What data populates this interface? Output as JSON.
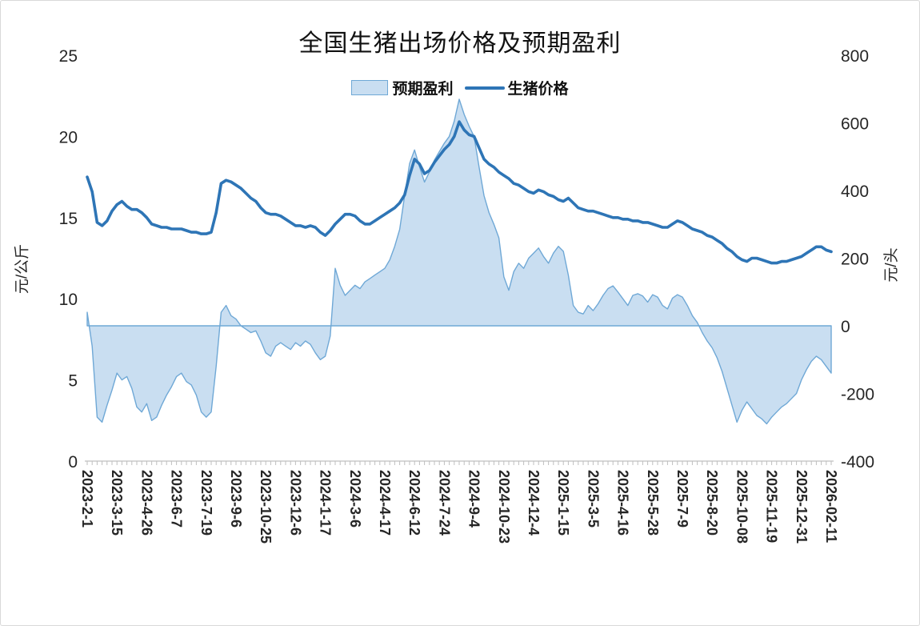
{
  "title": "全国生猪出场价格及预期盈利",
  "legend": {
    "area_label": "预期盈利",
    "line_label": "生猪价格"
  },
  "axes": {
    "left_title": "元/公斤",
    "right_title": "元/头"
  },
  "chart_data": {
    "type": "combo",
    "title": "全国生猪出场价格及预期盈利",
    "legend_position": "top-center",
    "grid": false,
    "x_tick_every": 6,
    "x_tick_labels": [
      "2023-2-1",
      "2023-3-15",
      "2023-4-26",
      "2023-6-7",
      "2023-7-19",
      "2023-9-6",
      "2023-10-25",
      "2023-12-6",
      "2024-1-17",
      "2024-3-6",
      "2024-4-17",
      "2024-6-12",
      "2024-7-24",
      "2024-9-4",
      "2024-10-23",
      "2024-12-4",
      "2025-1-15",
      "2025-3-5",
      "2025-4-16",
      "2025-5-28",
      "2025-7-9",
      "2025-8-20",
      "2025-10-08",
      "2025-11-19",
      "2025-12-31",
      "2026-02-11"
    ],
    "left_axis": {
      "title": "元/公斤",
      "min": 0,
      "max": 25,
      "ticks": [
        0,
        5,
        10,
        15,
        20,
        25
      ]
    },
    "right_axis": {
      "title": "元/头",
      "min": -400,
      "max": 800,
      "ticks": [
        -400,
        -200,
        0,
        200,
        400,
        600,
        800
      ]
    },
    "series": [
      {
        "name": "预期盈利",
        "type": "area",
        "axis": "right",
        "values": [
          40,
          -60,
          -270,
          -285,
          -235,
          -190,
          -140,
          -160,
          -150,
          -185,
          -240,
          -255,
          -230,
          -280,
          -270,
          -235,
          -205,
          -180,
          -150,
          -140,
          -165,
          -175,
          -205,
          -255,
          -270,
          -255,
          -120,
          40,
          60,
          30,
          20,
          0,
          -10,
          -20,
          -15,
          -45,
          -80,
          -90,
          -60,
          -50,
          -60,
          -70,
          -50,
          -60,
          -45,
          -55,
          -80,
          -100,
          -90,
          -30,
          170,
          120,
          90,
          105,
          120,
          110,
          130,
          140,
          150,
          160,
          170,
          195,
          235,
          285,
          385,
          480,
          520,
          470,
          425,
          455,
          490,
          515,
          540,
          560,
          605,
          670,
          625,
          590,
          560,
          470,
          385,
          335,
          300,
          260,
          145,
          105,
          160,
          185,
          170,
          200,
          215,
          230,
          205,
          185,
          215,
          235,
          220,
          150,
          60,
          40,
          35,
          60,
          45,
          65,
          90,
          110,
          118,
          100,
          80,
          60,
          90,
          95,
          88,
          70,
          92,
          85,
          60,
          50,
          82,
          92,
          85,
          60,
          30,
          10,
          -20,
          -45,
          -65,
          -95,
          -135,
          -185,
          -235,
          -285,
          -250,
          -225,
          -245,
          -265,
          -275,
          -290,
          -270,
          -255,
          -240,
          -230,
          -215,
          -200,
          -160,
          -130,
          -105,
          -90,
          -100,
          -120,
          -140
        ]
      },
      {
        "name": "生猪价格",
        "type": "line",
        "axis": "left",
        "values": [
          17.5,
          16.6,
          14.7,
          14.5,
          14.8,
          15.4,
          15.8,
          16.0,
          15.7,
          15.5,
          15.5,
          15.3,
          15.0,
          14.6,
          14.5,
          14.4,
          14.4,
          14.3,
          14.3,
          14.3,
          14.2,
          14.1,
          14.1,
          14.0,
          14.0,
          14.1,
          15.3,
          17.1,
          17.3,
          17.2,
          17.0,
          16.8,
          16.5,
          16.2,
          16.0,
          15.6,
          15.3,
          15.2,
          15.2,
          15.1,
          14.9,
          14.7,
          14.5,
          14.5,
          14.4,
          14.5,
          14.4,
          14.1,
          13.9,
          14.2,
          14.6,
          14.9,
          15.2,
          15.2,
          15.1,
          14.8,
          14.6,
          14.6,
          14.8,
          15.0,
          15.2,
          15.4,
          15.6,
          15.9,
          16.4,
          17.6,
          18.6,
          18.3,
          17.7,
          17.9,
          18.4,
          18.8,
          19.2,
          19.5,
          20.0,
          20.9,
          20.4,
          20.1,
          20.0,
          19.3,
          18.6,
          18.3,
          18.1,
          17.8,
          17.6,
          17.4,
          17.1,
          17.0,
          16.8,
          16.6,
          16.5,
          16.7,
          16.6,
          16.4,
          16.3,
          16.1,
          16.0,
          16.2,
          15.9,
          15.6,
          15.5,
          15.4,
          15.4,
          15.3,
          15.2,
          15.1,
          15.0,
          15.0,
          14.9,
          14.9,
          14.8,
          14.8,
          14.7,
          14.7,
          14.6,
          14.5,
          14.4,
          14.4,
          14.6,
          14.8,
          14.7,
          14.5,
          14.3,
          14.2,
          14.1,
          13.9,
          13.8,
          13.6,
          13.4,
          13.1,
          12.9,
          12.6,
          12.4,
          12.3,
          12.5,
          12.5,
          12.4,
          12.3,
          12.2,
          12.2,
          12.3,
          12.3,
          12.4,
          12.5,
          12.6,
          12.8,
          13.0,
          13.2,
          13.2,
          13.0,
          12.9
        ]
      }
    ],
    "colors": {
      "area_fill": "#C9DEF1",
      "area_stroke": "#6FA8D6",
      "line": "#2E75B6",
      "axis": "#BFBFBF",
      "text": "#262626"
    }
  }
}
